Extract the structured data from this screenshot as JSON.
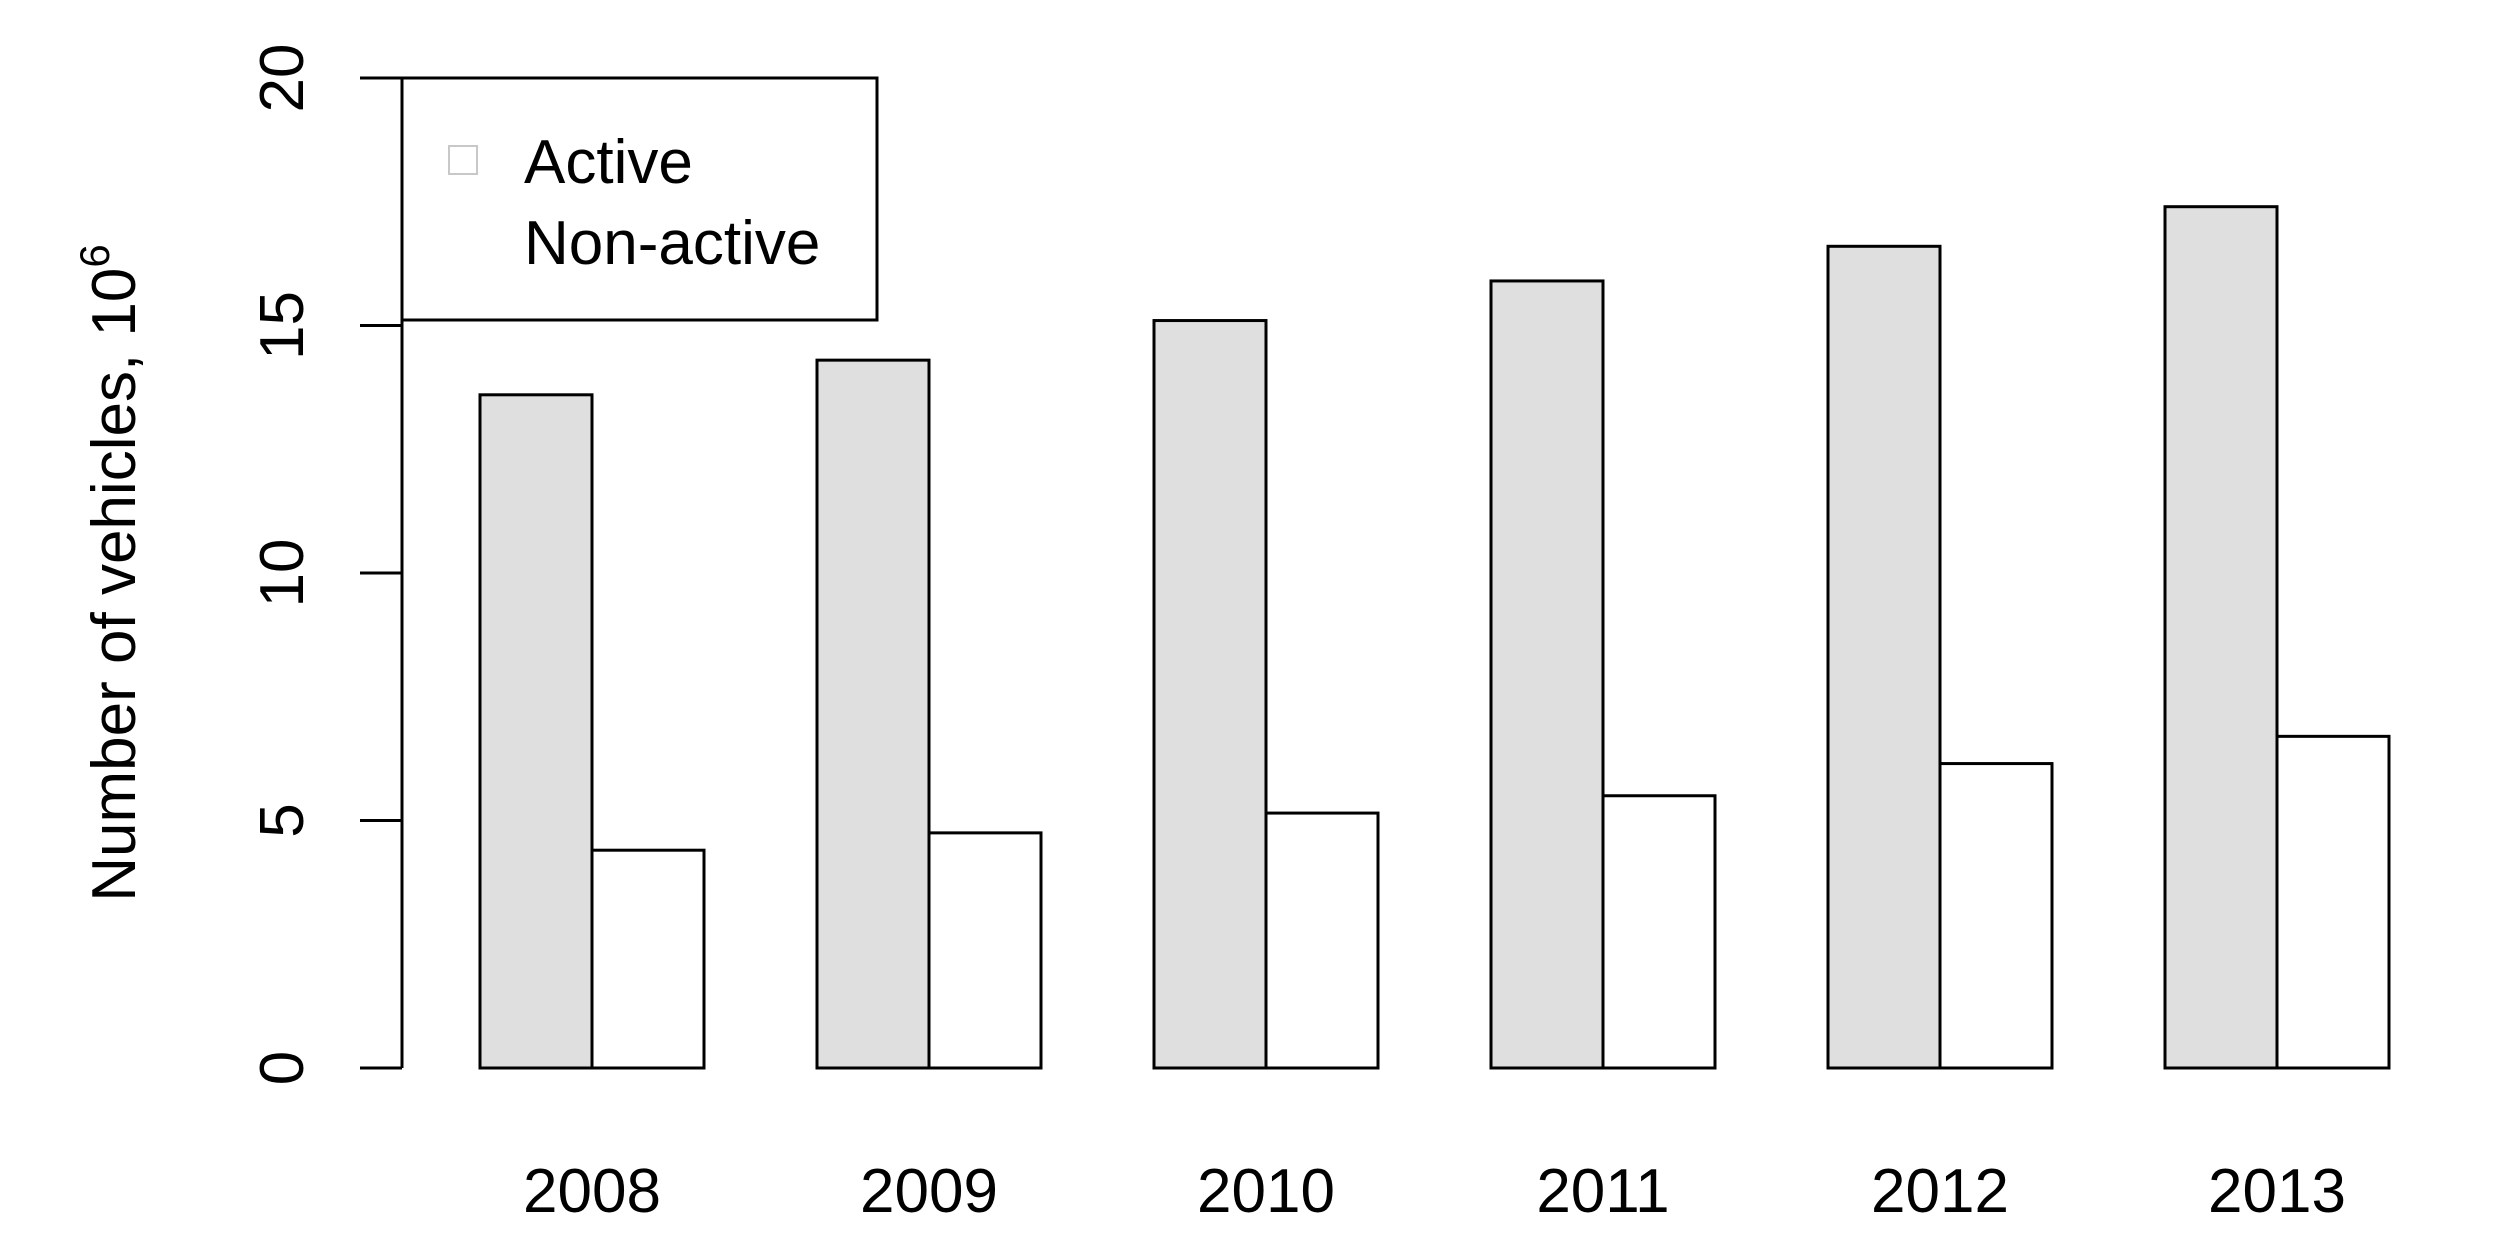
{
  "chart_data": {
    "type": "bar",
    "title": "",
    "xlabel": "",
    "ylabel": "Number of vehicles, 10",
    "ylabel_superscript": "6",
    "ylim": [
      0,
      20
    ],
    "yticks": [
      "0",
      "5",
      "10",
      "15",
      "20"
    ],
    "categories": [
      "2008",
      "2009",
      "2010",
      "2011",
      "2012",
      "2013"
    ],
    "series": [
      {
        "name": "Active",
        "color": "#dfdfdf",
        "values": [
          13.6,
          14.3,
          15.1,
          15.9,
          16.6,
          17.4
        ]
      },
      {
        "name": "Non-active",
        "color": "#ffffff",
        "values": [
          4.4,
          4.75,
          5.15,
          5.5,
          6.15,
          6.7
        ]
      }
    ],
    "grid": false,
    "legend": {
      "position": "top-left",
      "entries": [
        "Active",
        "Non-active"
      ]
    }
  }
}
